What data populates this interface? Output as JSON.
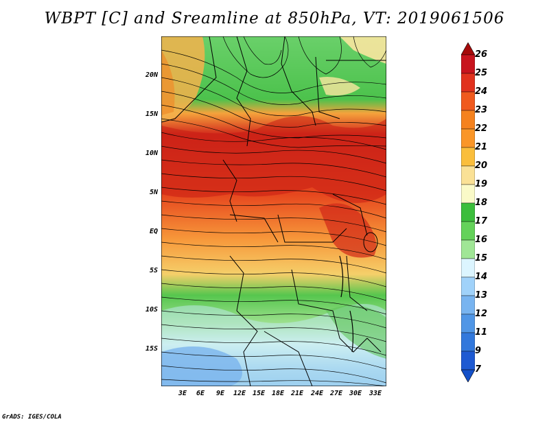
{
  "title": "WBPT [C] and Sreamline at 850hPa, VT: 2019061506",
  "credit": "GrADS: IGES/COLA",
  "lat_labels": [
    "20N",
    "15N",
    "10N",
    "5N",
    "EQ",
    "5S",
    "10S",
    "15S"
  ],
  "lon_labels": [
    "3E",
    "6E",
    "9E",
    "12E",
    "15E",
    "18E",
    "21E",
    "24E",
    "27E",
    "30E",
    "33E"
  ],
  "colorbar": {
    "labels": [
      "26",
      "25",
      "24",
      "23",
      "22",
      "21",
      "20",
      "19",
      "18",
      "17",
      "16",
      "15",
      "14",
      "13",
      "12",
      "11",
      "9",
      "7"
    ],
    "colors": [
      "#a50a0a",
      "#c8141e",
      "#e1321e",
      "#f05a1e",
      "#f5821e",
      "#fa9628",
      "#fabe3c",
      "#fae196",
      "#fafac8",
      "#3cbe3c",
      "#64d25a",
      "#a0e696",
      "#dcf5ff",
      "#a0d2fa",
      "#78b4f0",
      "#5096e6",
      "#3278dc",
      "#1e5ad2",
      "#1450c8"
    ]
  },
  "legend": {
    "green_land_north": "17-18",
    "red_band": "23-25",
    "orange_band": "20-22",
    "green_south": "16-18",
    "blue_south": "12-15"
  }
}
